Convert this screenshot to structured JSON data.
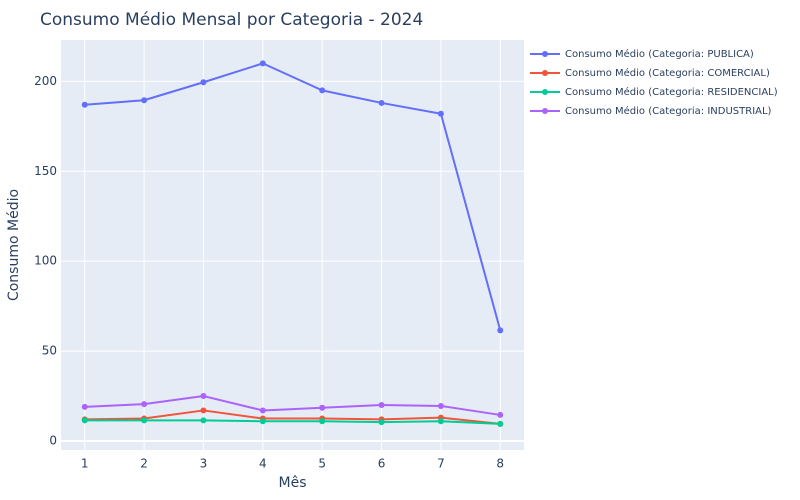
{
  "chart_data": {
    "type": "line",
    "title": "Consumo Médio Mensal por Categoria - 2024",
    "xlabel": "Mês",
    "ylabel": "Consumo Médio",
    "x": [
      1,
      2,
      3,
      4,
      5,
      6,
      7,
      8
    ],
    "xlim": [
      0.6,
      8.4
    ],
    "ylim": [
      -5,
      223
    ],
    "yticks": [
      0,
      50,
      100,
      150,
      200
    ],
    "grid": true,
    "legend_position": "top-right",
    "background": "#e5ecf6",
    "series": [
      {
        "name": "Consumo Médio (Categoria: PUBLICA)",
        "color": "#636efa",
        "values": [
          187,
          189.5,
          199.5,
          210,
          195,
          188,
          182,
          61.5
        ]
      },
      {
        "name": "Consumo Médio (Categoria: COMERCIAL)",
        "color": "#ef553b",
        "values": [
          12,
          12.5,
          17,
          12.5,
          12.5,
          12,
          13,
          9.5
        ]
      },
      {
        "name": "Consumo Médio (Categoria: RESIDENCIAL)",
        "color": "#00cc96",
        "values": [
          11.5,
          11.5,
          11.5,
          11,
          11,
          10.5,
          11,
          9.5
        ]
      },
      {
        "name": "Consumo Médio (Categoria: INDUSTRIAL)",
        "color": "#ab63fa",
        "values": [
          19,
          20.5,
          25,
          17,
          18.5,
          20,
          19.5,
          14.5
        ]
      }
    ]
  }
}
